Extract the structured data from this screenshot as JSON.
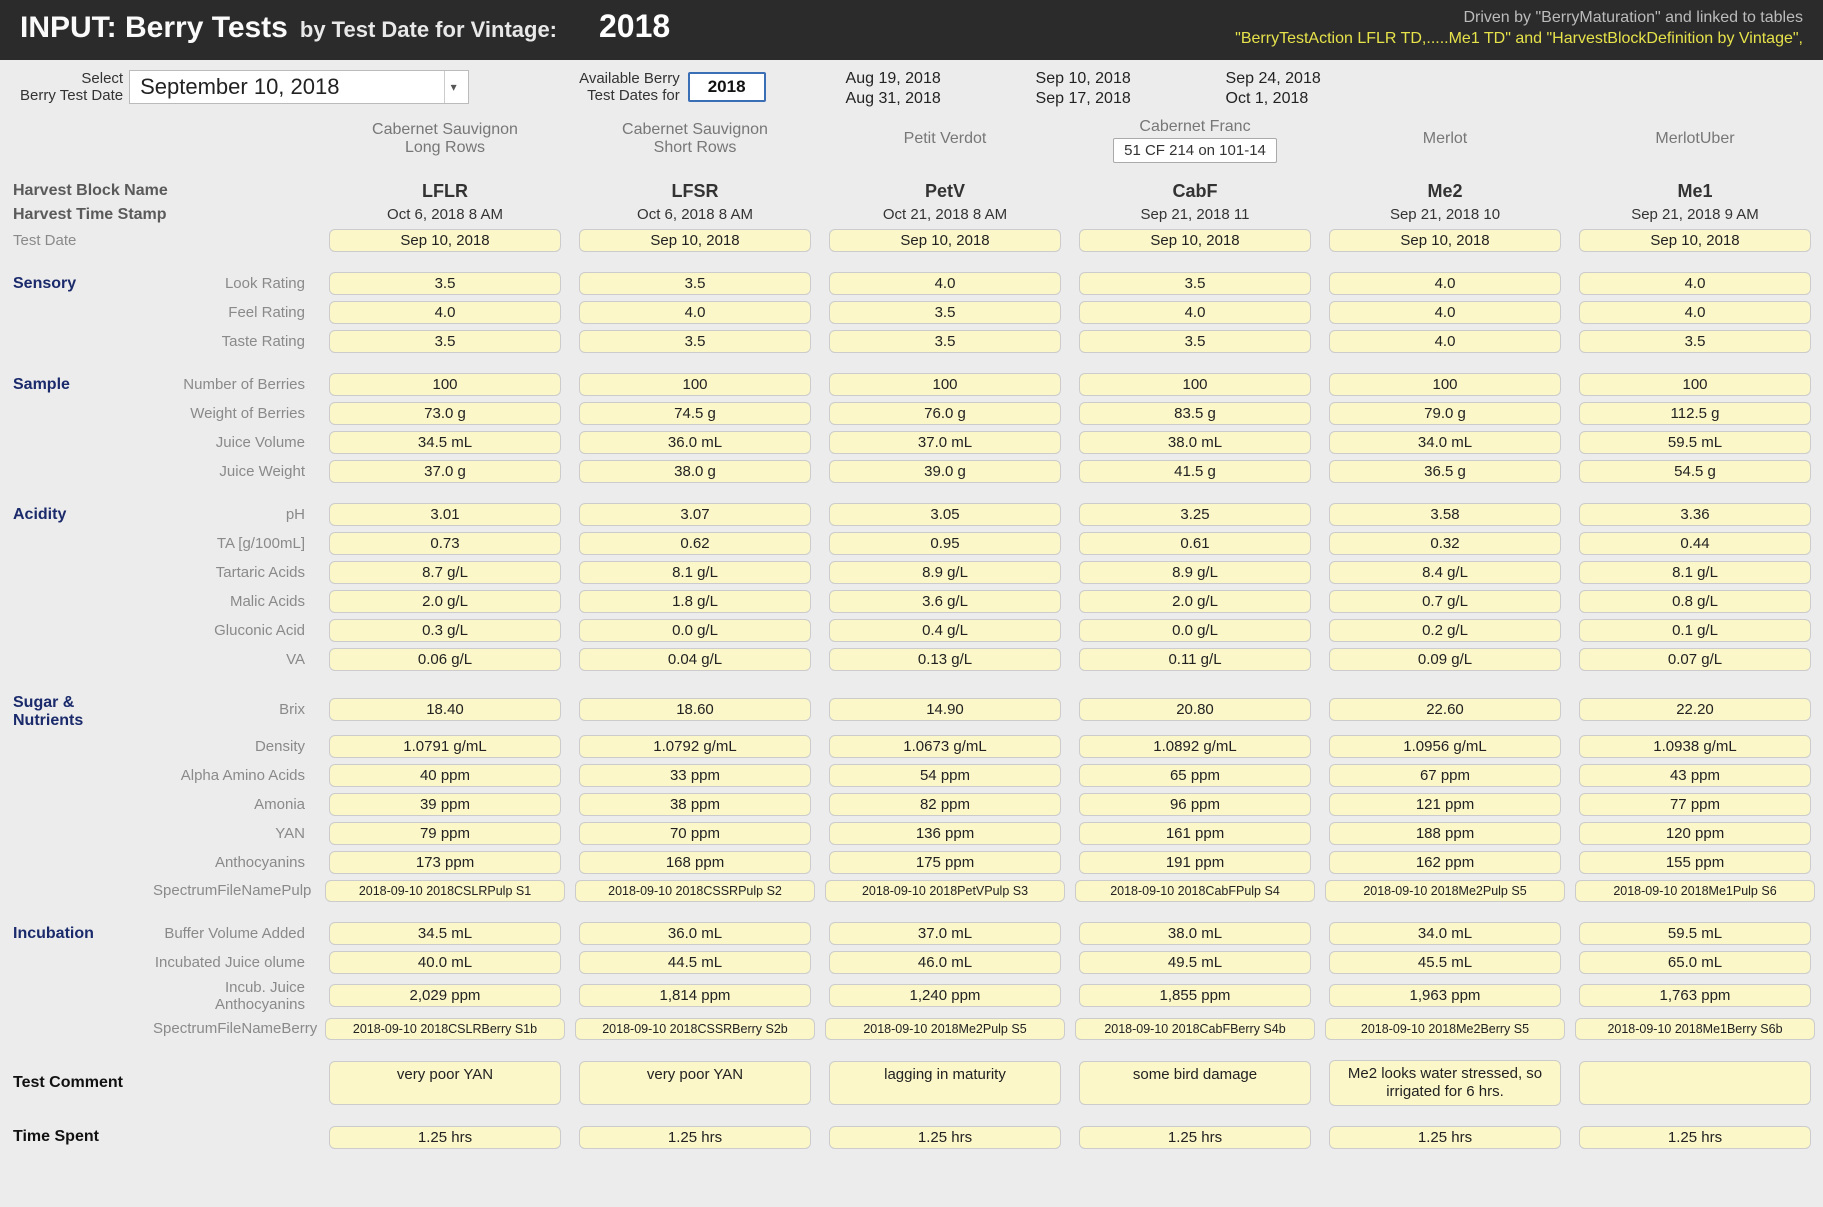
{
  "header": {
    "title_prefix": "INPUT: Berry Tests",
    "title_suffix": "by Test Date for Vintage:",
    "vintage_year": "2018",
    "driven_text": "Driven by \"BerryMaturation\" and linked to tables",
    "linked_text": "\"BerryTestAction LFLR TD,.....Me1 TD\" and \"HarvestBlockDefinition by Vintage\","
  },
  "controls": {
    "select_label_l1": "Select",
    "select_label_l2": "Berry Test Date",
    "selected_date": "September 10, 2018",
    "avail_label_l1": "Available Berry",
    "avail_label_l2": "Test Dates for",
    "avail_year": "2018",
    "dates": [
      "Aug 19, 2018",
      "Sep 10, 2018",
      "Sep 24, 2018",
      "Aug 31, 2018",
      "Sep 17, 2018",
      "Oct 1, 2018"
    ]
  },
  "varieties": [
    {
      "name": "Cabernet Sauvignon",
      "sub": "Long Rows",
      "extra": ""
    },
    {
      "name": "Cabernet Sauvignon",
      "sub": "Short Rows",
      "extra": ""
    },
    {
      "name": "Petit Verdot",
      "sub": "",
      "extra": ""
    },
    {
      "name": "Cabernet Franc",
      "sub": "",
      "extra": "51 CF 214 on 101-14"
    },
    {
      "name": "Merlot",
      "sub": "",
      "extra": ""
    },
    {
      "name": "MerlotUber",
      "sub": "",
      "extra": ""
    }
  ],
  "row_headers": {
    "harvest_block": "Harvest Block Name",
    "harvest_ts": "Harvest Time Stamp",
    "test_date": "Test Date"
  },
  "categories": {
    "sensory": "Sensory",
    "sample": "Sample",
    "acidity": "Acidity",
    "sugar": "Sugar & Nutrients",
    "incubation": "Incubation",
    "comment": "Test Comment",
    "time_spent": "Time Spent"
  },
  "metrics": {
    "look": "Look Rating",
    "feel": "Feel Rating",
    "taste": "Taste Rating",
    "num_berries": "Number of Berries",
    "wt_berries": "Weight of Berries",
    "juice_vol": "Juice Volume",
    "juice_wt": "Juice Weight",
    "ph": "pH",
    "ta": "TA [g/100mL]",
    "tartaric": "Tartaric Acids",
    "malic": "Malic Acids",
    "gluconic": "Gluconic Acid",
    "va": "VA",
    "brix": "Brix",
    "density": "Density",
    "aaa": "Alpha Amino Acids",
    "amonia": "Amonia",
    "yan": "YAN",
    "antho": "Anthocyanins",
    "spec_pulp": "SpectrumFileNamePulp",
    "buf_vol": "Buffer Volume Added",
    "inc_juice": "Incubated Juice olume",
    "inc_antho": "Incub. Juice Anthocyanins",
    "spec_berry": "SpectrumFileNameBerry"
  },
  "blocks": [
    {
      "code": "LFLR",
      "harvest_ts": "Oct 6, 2018  8 AM",
      "test_date": "Sep 10, 2018",
      "look": "3.5",
      "feel": "4.0",
      "taste": "3.5",
      "num_berries": "100",
      "wt_berries": "73.0 g",
      "juice_vol": "34.5 mL",
      "juice_wt": "37.0 g",
      "ph": "3.01",
      "ta": "0.73",
      "tartaric": "8.7 g/L",
      "malic": "2.0 g/L",
      "gluconic": "0.3 g/L",
      "va": "0.06 g/L",
      "brix": "18.40",
      "density": "1.0791 g/mL",
      "aaa": "40 ppm",
      "amonia": "39 ppm",
      "yan": "79 ppm",
      "antho": "173 ppm",
      "spec_pulp": "2018-09-10 2018CSLRPulp S1",
      "buf_vol": "34.5 mL",
      "inc_juice": "40.0 mL",
      "inc_antho": "2,029 ppm",
      "spec_berry": "2018-09-10 2018CSLRBerry S1b",
      "comment": "very poor YAN",
      "time_spent": "1.25  hrs"
    },
    {
      "code": "LFSR",
      "harvest_ts": "Oct 6, 2018  8 AM",
      "test_date": "Sep 10, 2018",
      "look": "3.5",
      "feel": "4.0",
      "taste": "3.5",
      "num_berries": "100",
      "wt_berries": "74.5 g",
      "juice_vol": "36.0 mL",
      "juice_wt": "38.0 g",
      "ph": "3.07",
      "ta": "0.62",
      "tartaric": "8.1 g/L",
      "malic": "1.8 g/L",
      "gluconic": "0.0 g/L",
      "va": "0.04 g/L",
      "brix": "18.60",
      "density": "1.0792 g/mL",
      "aaa": "33 ppm",
      "amonia": "38 ppm",
      "yan": "70 ppm",
      "antho": "168 ppm",
      "spec_pulp": "2018-09-10 2018CSSRPulp S2",
      "buf_vol": "36.0 mL",
      "inc_juice": "44.5 mL",
      "inc_antho": "1,814 ppm",
      "spec_berry": "2018-09-10 2018CSSRBerry S2b",
      "comment": "very poor YAN",
      "time_spent": "1.25  hrs"
    },
    {
      "code": "PetV",
      "harvest_ts": "Oct 21, 2018  8 AM",
      "test_date": "Sep 10, 2018",
      "look": "4.0",
      "feel": "3.5",
      "taste": "3.5",
      "num_berries": "100",
      "wt_berries": "76.0 g",
      "juice_vol": "37.0 mL",
      "juice_wt": "39.0 g",
      "ph": "3.05",
      "ta": "0.95",
      "tartaric": "8.9 g/L",
      "malic": "3.6 g/L",
      "gluconic": "0.4 g/L",
      "va": "0.13 g/L",
      "brix": "14.90",
      "density": "1.0673 g/mL",
      "aaa": "54 ppm",
      "amonia": "82 ppm",
      "yan": "136 ppm",
      "antho": "175 ppm",
      "spec_pulp": "2018-09-10 2018PetVPulp S3",
      "buf_vol": "37.0 mL",
      "inc_juice": "46.0 mL",
      "inc_antho": "1,240 ppm",
      "spec_berry": "2018-09-10 2018Me2Pulp S5",
      "comment": "lagging in maturity",
      "time_spent": "1.25  hrs"
    },
    {
      "code": "CabF",
      "harvest_ts": "Sep 21, 2018 11",
      "test_date": "Sep 10, 2018",
      "look": "3.5",
      "feel": "4.0",
      "taste": "3.5",
      "num_berries": "100",
      "wt_berries": "83.5 g",
      "juice_vol": "38.0 mL",
      "juice_wt": "41.5 g",
      "ph": "3.25",
      "ta": "0.61",
      "tartaric": "8.9 g/L",
      "malic": "2.0 g/L",
      "gluconic": "0.0 g/L",
      "va": "0.11 g/L",
      "brix": "20.80",
      "density": "1.0892 g/mL",
      "aaa": "65 ppm",
      "amonia": "96 ppm",
      "yan": "161 ppm",
      "antho": "191 ppm",
      "spec_pulp": "2018-09-10 2018CabFPulp S4",
      "buf_vol": "38.0 mL",
      "inc_juice": "49.5 mL",
      "inc_antho": "1,855 ppm",
      "spec_berry": "2018-09-10 2018CabFBerry S4b",
      "comment": "some bird damage",
      "time_spent": "1.25  hrs"
    },
    {
      "code": "Me2",
      "harvest_ts": "Sep 21, 2018 10",
      "test_date": "Sep 10, 2018",
      "look": "4.0",
      "feel": "4.0",
      "taste": "4.0",
      "num_berries": "100",
      "wt_berries": "79.0 g",
      "juice_vol": "34.0 mL",
      "juice_wt": "36.5 g",
      "ph": "3.58",
      "ta": "0.32",
      "tartaric": "8.4 g/L",
      "malic": "0.7 g/L",
      "gluconic": "0.2 g/L",
      "va": "0.09 g/L",
      "brix": "22.60",
      "density": "1.0956 g/mL",
      "aaa": "67 ppm",
      "amonia": "121 ppm",
      "yan": "188 ppm",
      "antho": "162 ppm",
      "spec_pulp": "2018-09-10 2018Me2Pulp S5",
      "buf_vol": "34.0 mL",
      "inc_juice": "45.5 mL",
      "inc_antho": "1,963 ppm",
      "spec_berry": "2018-09-10 2018Me2Berry S5",
      "comment": "Me2 looks water stressed, so irrigated for 6 hrs.",
      "time_spent": "1.25  hrs"
    },
    {
      "code": "Me1",
      "harvest_ts": "Sep 21, 2018  9 AM",
      "test_date": "Sep 10, 2018",
      "look": "4.0",
      "feel": "4.0",
      "taste": "3.5",
      "num_berries": "100",
      "wt_berries": "112.5 g",
      "juice_vol": "59.5 mL",
      "juice_wt": "54.5 g",
      "ph": "3.36",
      "ta": "0.44",
      "tartaric": "8.1 g/L",
      "malic": "0.8 g/L",
      "gluconic": "0.1 g/L",
      "va": "0.07 g/L",
      "brix": "22.20",
      "density": "1.0938 g/mL",
      "aaa": "43 ppm",
      "amonia": "77 ppm",
      "yan": "120 ppm",
      "antho": "155 ppm",
      "spec_pulp": "2018-09-10 2018Me1Pulp S6",
      "buf_vol": "59.5 mL",
      "inc_juice": "65.0 mL",
      "inc_antho": "1,763 ppm",
      "spec_berry": "2018-09-10 2018Me1Berry S6b",
      "comment": "",
      "time_spent": "1.25  hrs"
    }
  ],
  "styling": {
    "header_bg": "#2b2b2b",
    "page_bg": "#ececec",
    "cell_bg": "#fbf7c8",
    "cell_border": "#cccccc",
    "linked_color": "#e6e24a",
    "category_color": "#1a2a6b",
    "year_btn_border": "#3b6fb5"
  }
}
